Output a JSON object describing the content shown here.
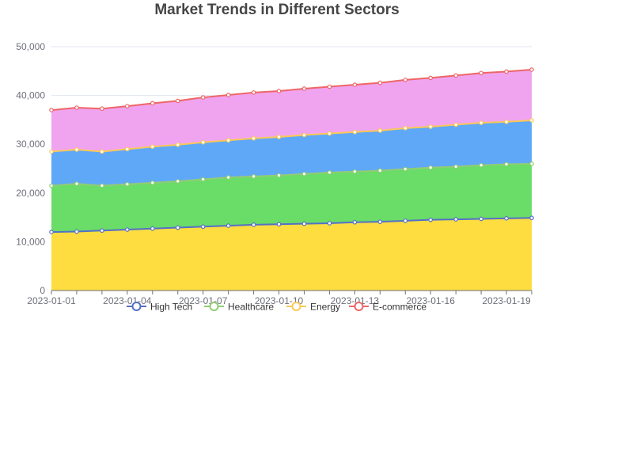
{
  "chart_data": {
    "type": "area",
    "stacked": true,
    "title": "Market Trends in Different Sectors",
    "xlabel": "",
    "ylabel": "",
    "x": [
      "2023-01-01",
      "2023-01-02",
      "2023-01-03",
      "2023-01-04",
      "2023-01-05",
      "2023-01-06",
      "2023-01-07",
      "2023-01-08",
      "2023-01-09",
      "2023-01-10",
      "2023-01-11",
      "2023-01-12",
      "2023-01-13",
      "2023-01-14",
      "2023-01-15",
      "2023-01-16",
      "2023-01-17",
      "2023-01-18",
      "2023-01-19",
      "2023-01-20"
    ],
    "x_tick_labels": [
      "2023-01-01",
      "2023-01-04",
      "2023-01-07",
      "2023-01-10",
      "2023-01-13",
      "2023-01-16",
      "2023-01-19"
    ],
    "y_tick_labels": [
      "0",
      "10,000",
      "20,000",
      "30,000",
      "40,000",
      "50,000"
    ],
    "ylim": [
      0,
      50000
    ],
    "grid": true,
    "legend_position": "bottom",
    "series": [
      {
        "name": "High Tech",
        "color": "#5470c6",
        "fill": "#fddd3f",
        "values": [
          12000,
          12100,
          12300,
          12500,
          12700,
          12900,
          13100,
          13300,
          13500,
          13600,
          13700,
          13800,
          14000,
          14100,
          14300,
          14500,
          14600,
          14700,
          14800,
          14900
        ]
      },
      {
        "name": "Healthcare",
        "color": "#91cc75",
        "fill": "#6adc68",
        "values": [
          9500,
          9800,
          9200,
          9300,
          9400,
          9500,
          9700,
          9900,
          9900,
          10000,
          10200,
          10400,
          10400,
          10500,
          10600,
          10700,
          10800,
          11000,
          11100,
          11100
        ]
      },
      {
        "name": "Energy",
        "color": "#fac858",
        "fill": "#5fa8f8",
        "values": [
          7000,
          7000,
          7000,
          7200,
          7400,
          7500,
          7600,
          7600,
          7800,
          7900,
          8000,
          8000,
          8100,
          8200,
          8400,
          8400,
          8600,
          8700,
          8700,
          8900
        ]
      },
      {
        "name": "E-commerce",
        "color": "#ee6666",
        "fill": "#f0a4f0",
        "values": [
          8500,
          8600,
          8800,
          8800,
          8900,
          9000,
          9200,
          9300,
          9400,
          9400,
          9500,
          9600,
          9700,
          9800,
          9900,
          10000,
          10100,
          10200,
          10300,
          10400
        ]
      }
    ]
  }
}
